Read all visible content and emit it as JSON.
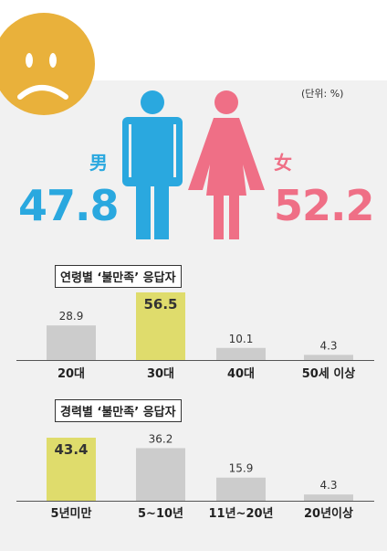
{
  "unit_label": "(단위: %)",
  "icons": [
    "sad-face-icon",
    "male-figure-icon",
    "female-figure-icon"
  ],
  "colors": {
    "male": "#2aa8df",
    "female": "#ef6f86",
    "face": "#e9b13b",
    "highlight": "#dfdc6c",
    "bar": "#cccccc"
  },
  "gender": {
    "male": {
      "label": "男",
      "value": "47.8"
    },
    "female": {
      "label": "女",
      "value": "52.2"
    }
  },
  "chart_data": [
    {
      "type": "bar",
      "title": "연령별 ‘불만족’ 응답자",
      "categories": [
        "20대",
        "30대",
        "40대",
        "50세 이상"
      ],
      "values": [
        28.9,
        56.5,
        10.1,
        4.3
      ],
      "highlight_index": 1,
      "ylim": [
        0,
        60
      ]
    },
    {
      "type": "bar",
      "title": "경력별 ‘불만족’ 응답자",
      "categories": [
        "5년미만",
        "5~10년",
        "11년~20년",
        "20년이상"
      ],
      "values": [
        43.4,
        36.2,
        15.9,
        4.3
      ],
      "highlight_index": 0,
      "ylim": [
        0,
        48
      ]
    }
  ]
}
